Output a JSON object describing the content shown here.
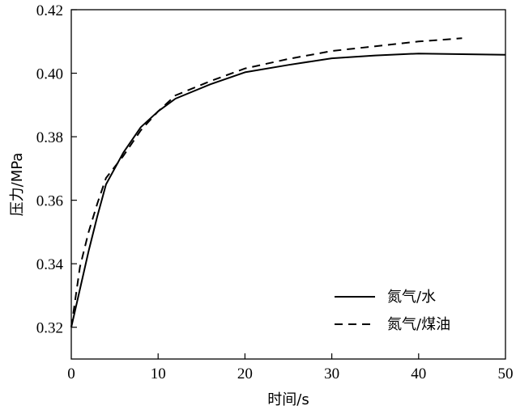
{
  "chart_data": {
    "type": "line",
    "title": "",
    "xlabel": "时间/s",
    "ylabel": "压力/MPa",
    "xlim": [
      0,
      50
    ],
    "ylim": [
      0.31,
      0.42
    ],
    "xticks": [
      "0",
      "10",
      "20",
      "30",
      "40",
      "50"
    ],
    "yticks": [
      "0.32",
      "0.34",
      "0.36",
      "0.38",
      "0.40",
      "0.42"
    ],
    "grid": false,
    "legend_position": "bottom-right",
    "series": [
      {
        "name": "氮气/水",
        "style": "solid",
        "color": "#000000",
        "x": [
          0,
          1,
          2,
          3,
          4,
          6,
          8,
          10,
          12,
          16,
          20,
          25,
          30,
          35,
          40,
          45,
          50
        ],
        "y": [
          0.32,
          0.332,
          0.344,
          0.355,
          0.365,
          0.375,
          0.383,
          0.388,
          0.392,
          0.3965,
          0.4003,
          0.4026,
          0.4047,
          0.4056,
          0.4062,
          0.406,
          0.4058
        ]
      },
      {
        "name": "氮气/煤油",
        "style": "dashed",
        "color": "#000000",
        "x": [
          0,
          1,
          2,
          3,
          4,
          6,
          8,
          10,
          12,
          16,
          20,
          25,
          30,
          35,
          40,
          45
        ],
        "y": [
          0.32,
          0.339,
          0.35,
          0.359,
          0.367,
          0.374,
          0.382,
          0.388,
          0.393,
          0.3975,
          0.4015,
          0.4045,
          0.407,
          0.4085,
          0.41,
          0.411
        ]
      }
    ]
  }
}
